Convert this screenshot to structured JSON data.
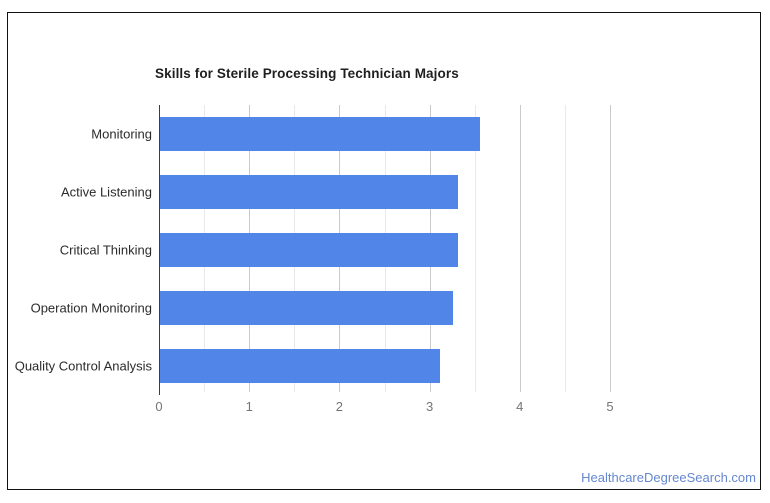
{
  "chart_data": {
    "type": "bar",
    "orientation": "horizontal",
    "title": "Skills for Sterile Processing Technician Majors",
    "categories": [
      "Monitoring",
      "Active Listening",
      "Critical Thinking",
      "Operation Monitoring",
      "Quality Control Analysis"
    ],
    "values": [
      3.55,
      3.3,
      3.3,
      3.25,
      3.1
    ],
    "xlabel": "",
    "ylabel": "",
    "xlim": [
      0,
      5
    ],
    "x_ticks": [
      0,
      1,
      2,
      3,
      4,
      5
    ],
    "gridlines": {
      "major_step": 1,
      "minor_step": 0.5,
      "direction": "vertical"
    },
    "legend": "none",
    "bar_color": "#5285e8",
    "colors": {
      "major_grid": "#cbcbcb",
      "minor_grid": "#e9e9e9",
      "axis_baseline": "#3c3c3c",
      "tick_label": "#757575",
      "category_label": "#2b2b2b",
      "title": "#1f1f1f",
      "frame_border": "#111111",
      "background": "#ffffff"
    }
  },
  "watermark": {
    "text": "HealthcareDegreeSearch.com",
    "color": "#6588d0"
  }
}
